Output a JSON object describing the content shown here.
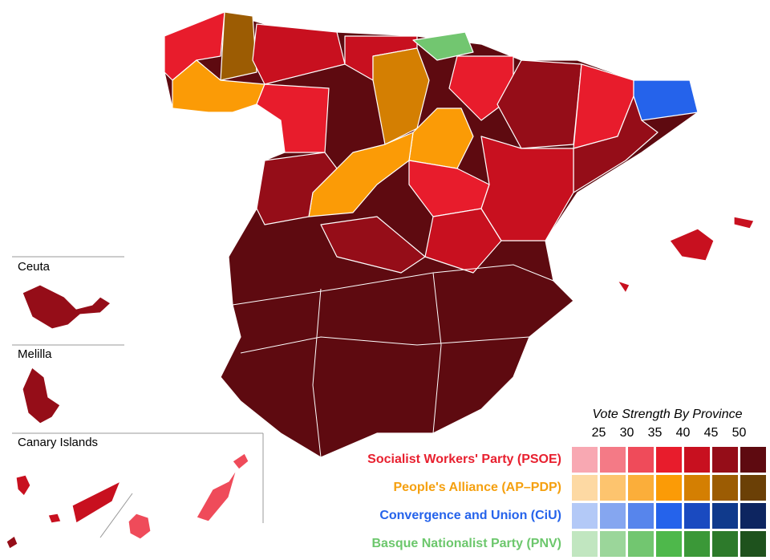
{
  "insets": [
    "Ceuta",
    "Melilla",
    "Canary Islands"
  ],
  "legend": {
    "title": "Vote Strength By Province",
    "levels": [
      25,
      30,
      35,
      40,
      45,
      50
    ],
    "parties": [
      {
        "name": "Socialist Workers' Party (PSOE)",
        "color": "#e8202f",
        "scale": [
          "#f8a8b2",
          "#f47a86",
          "#ef4b5a",
          "#e81c2c",
          "#c8101f",
          "#950d18",
          "#5e0a10"
        ]
      },
      {
        "name": "People's Alliance (AP–PDP)",
        "color": "#f5a00f",
        "scale": [
          "#fdd9a3",
          "#fdc46e",
          "#fbae3a",
          "#fb9b06",
          "#d47f02",
          "#9c5c03",
          "#6b4006"
        ]
      },
      {
        "name": "Convergence and Union (CiU)",
        "color": "#2563eb",
        "scale": [
          "#b3c9f7",
          "#85a6f0",
          "#5785ec",
          "#2563eb",
          "#1a4ac0",
          "#103a8c",
          "#0d2560"
        ]
      },
      {
        "name": "Basque Nationalist Party (PNV)",
        "color": "#6cc76c",
        "scale": [
          "#c1e6c0",
          "#9bd69a",
          "#72c670",
          "#4eb84b",
          "#3b9838",
          "#2d7a2b",
          "#1e521d"
        ]
      }
    ]
  }
}
